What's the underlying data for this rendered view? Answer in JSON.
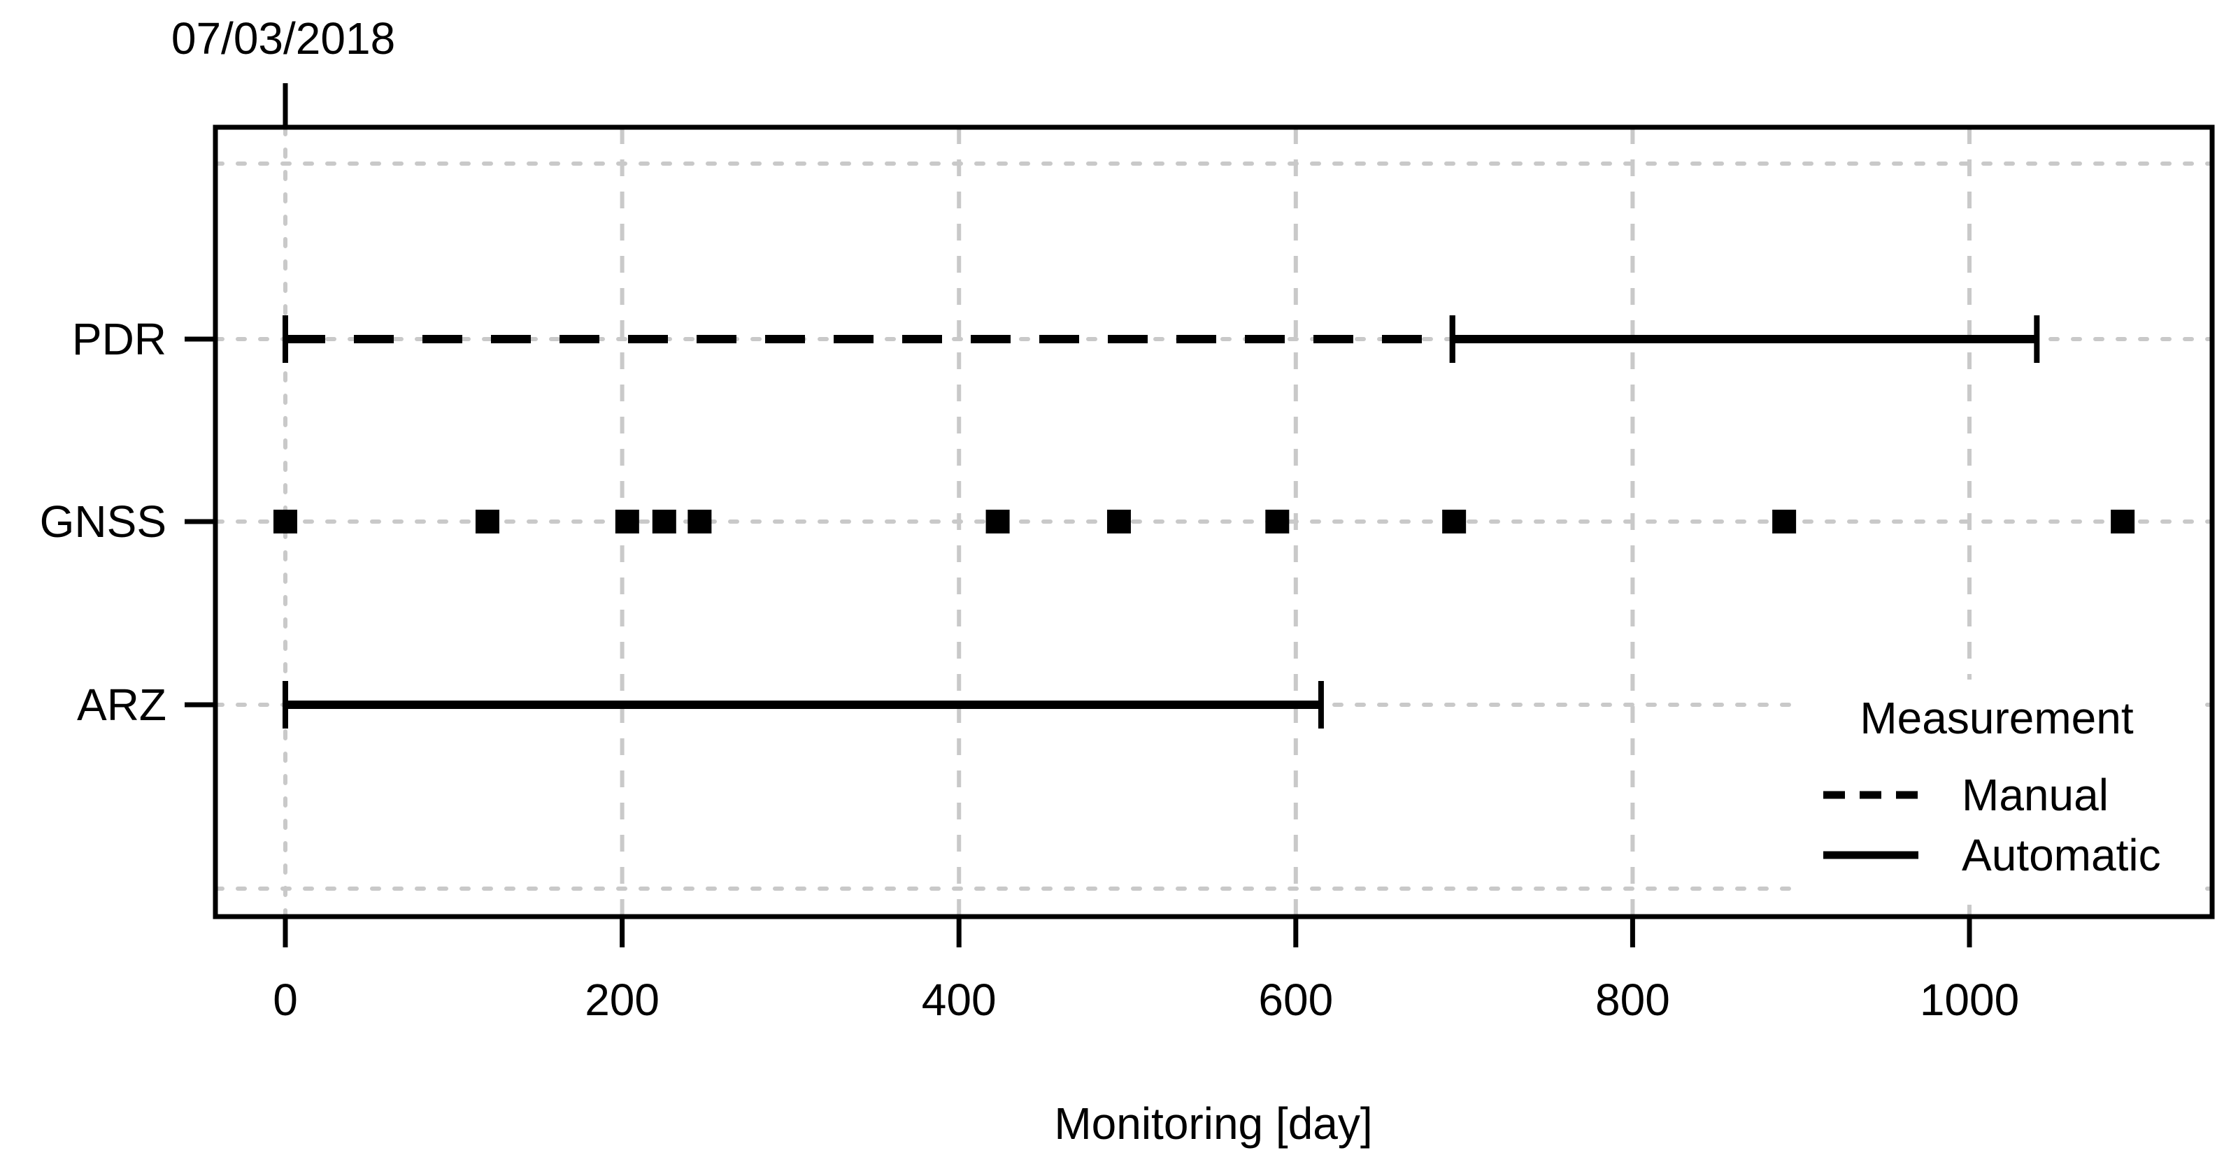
{
  "chart_data": {
    "type": "line",
    "subtype": "interval-timeline",
    "title": "07/03/2018",
    "xlabel": "Monitoring [day]",
    "ylabel": "",
    "xlim": [
      -42,
      1148
    ],
    "x_ticks": [
      0,
      200,
      400,
      600,
      800,
      1000
    ],
    "x_tick_labels": [
      "0",
      "200",
      "400",
      "600",
      "800",
      "1000"
    ],
    "grid": true,
    "legend_position": "inside-bottom-right",
    "categories": [
      "PDR",
      "GNSS",
      "ARZ"
    ],
    "series": [
      {
        "name": "PDR",
        "kind": "intervals",
        "intervals": [
          {
            "start_day": 0,
            "end_day": 693,
            "measurement": "Manual",
            "line_style": "dashed"
          },
          {
            "start_day": 693,
            "end_day": 1040,
            "measurement": "Automatic",
            "line_style": "solid"
          }
        ]
      },
      {
        "name": "GNSS",
        "kind": "scatter",
        "marker": "filled-square",
        "days": [
          0,
          120,
          203,
          225,
          246,
          423,
          495,
          589,
          694,
          890,
          1091
        ]
      },
      {
        "name": "ARZ",
        "kind": "intervals",
        "intervals": [
          {
            "start_day": 0,
            "end_day": 615,
            "measurement": "Automatic",
            "line_style": "solid"
          }
        ]
      }
    ],
    "legend": {
      "title": "Measurement",
      "entries": [
        {
          "label": "Manual",
          "line_style": "dashed"
        },
        {
          "label": "Automatic",
          "line_style": "solid"
        }
      ]
    },
    "annotations": [
      {
        "text": "07/03/2018",
        "at_day": 0,
        "position": "above-plot"
      }
    ],
    "colors": {
      "data": "#000000",
      "grid": "#c9c9c9",
      "background": "#ffffff"
    }
  }
}
